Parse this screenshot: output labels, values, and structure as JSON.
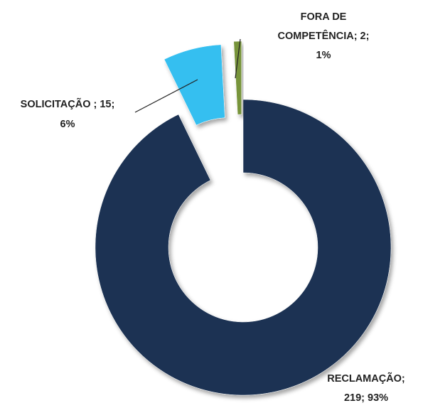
{
  "chart_data": {
    "type": "donut",
    "values": [
      219,
      15,
      2
    ],
    "value_labels": [
      [
        "RECLAMAÇÃO;",
        "219; 93%"
      ],
      [
        "SOLICITAÇÃO ; 15;",
        "6%"
      ],
      [
        "FORA DE",
        "COMPETÊNCIA; 2;",
        "1%"
      ]
    ],
    "colors": [
      "#1b3352",
      "#35bff0",
      "#77943a"
    ]
  }
}
